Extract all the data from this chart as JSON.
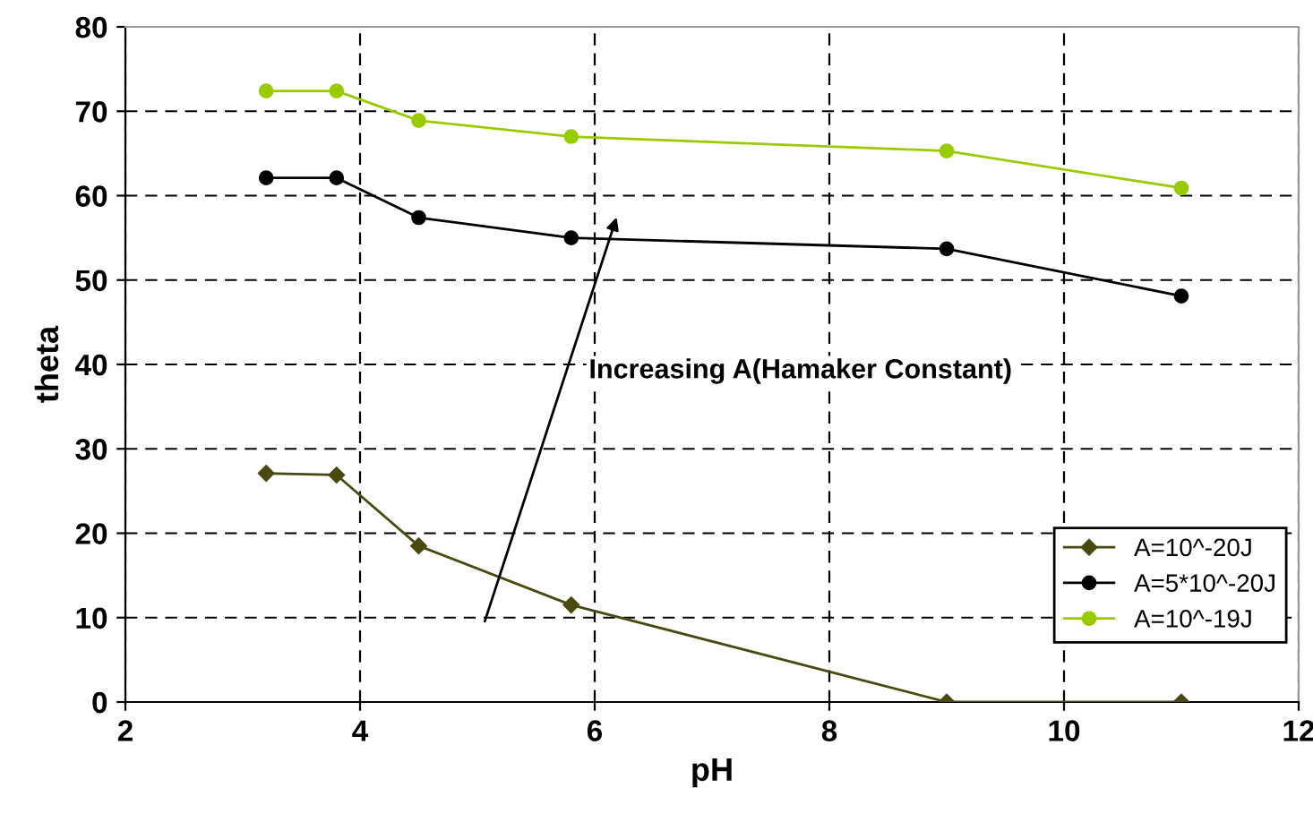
{
  "chart_data": {
    "type": "line",
    "xlabel": "pH",
    "ylabel": "theta",
    "x": [
      3.2,
      3.8,
      4.5,
      5.8,
      9,
      11
    ],
    "series": [
      {
        "name": "A=10^-20J",
        "color": "#4a4a10",
        "marker": "diamond",
        "values": [
          27.1,
          26.9,
          18.5,
          11.5,
          0,
          0
        ]
      },
      {
        "name": "A=5*10^-20J",
        "color": "#000000",
        "marker": "circle",
        "values": [
          62.1,
          62.1,
          57.4,
          55,
          53.7,
          48.1
        ]
      },
      {
        "name": "A=10^-19J",
        "color": "#99cc00",
        "marker": "circle",
        "values": [
          72.4,
          72.4,
          68.9,
          67,
          65.3,
          60.9
        ]
      }
    ],
    "annotations": [
      "Increasing A(Hamaker Constant)"
    ],
    "xlim": [
      2,
      12
    ],
    "xticks": [
      2,
      4,
      6,
      8,
      10,
      12
    ],
    "ylim": [
      0,
      80
    ],
    "yticks": [
      0,
      10,
      20,
      30,
      40,
      50,
      60,
      70,
      80
    ],
    "grid": true,
    "legend": "bottom right",
    "line_style": "solid"
  }
}
